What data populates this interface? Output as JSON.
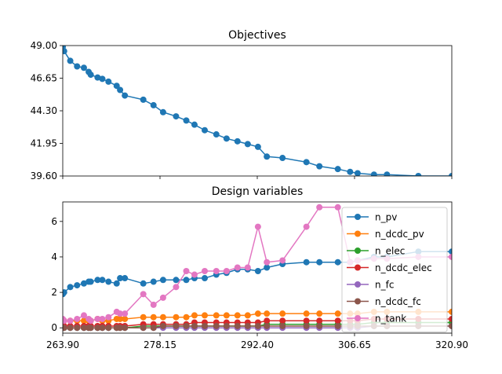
{
  "chart_data": [
    {
      "type": "line",
      "title": "Objectives",
      "xlim": [
        263.9,
        320.9
      ],
      "ylim": [
        39.6,
        49.0
      ],
      "xticks": [
        "263.90",
        "278.15",
        "292.40",
        "306.65",
        "320.90"
      ],
      "xtick_values": [
        263.9,
        278.15,
        292.4,
        306.65,
        320.9
      ],
      "x_tick_labels_shown": false,
      "yticks": [
        "39.60",
        "41.95",
        "44.30",
        "46.65",
        "49.00"
      ],
      "ytick_values": [
        39.6,
        41.95,
        44.3,
        46.65,
        49.0
      ],
      "grid": false,
      "legend": null,
      "series": [
        {
          "color": "#1f77b4",
          "marker": "circle",
          "x": [
            263.9,
            264.1,
            265.0,
            266.0,
            267.0,
            267.7,
            268.0,
            269.0,
            269.7,
            270.6,
            271.8,
            272.3,
            273.0,
            275.7,
            277.2,
            278.6,
            280.5,
            282.0,
            283.2,
            284.7,
            286.4,
            287.9,
            289.5,
            291.0,
            292.5,
            293.8,
            296.1,
            299.6,
            301.5,
            304.2,
            306.0,
            307.1,
            309.5,
            311.4,
            316.0,
            320.9
          ],
          "y": [
            48.9,
            48.6,
            47.9,
            47.5,
            47.4,
            47.1,
            46.9,
            46.7,
            46.6,
            46.4,
            46.1,
            45.8,
            45.4,
            45.1,
            44.7,
            44.2,
            43.9,
            43.6,
            43.3,
            42.9,
            42.6,
            42.3,
            42.1,
            41.9,
            41.7,
            41.0,
            40.9,
            40.6,
            40.3,
            40.1,
            39.9,
            39.8,
            39.7,
            39.7,
            39.6,
            39.6
          ]
        }
      ]
    },
    {
      "type": "line",
      "title": "Design variables",
      "xlim": [
        263.9,
        320.9
      ],
      "ylim": [
        -0.3,
        7.1
      ],
      "xticks": [
        "263.90",
        "278.15",
        "292.40",
        "306.65",
        "320.90"
      ],
      "xtick_values": [
        263.9,
        278.15,
        292.4,
        306.65,
        320.9
      ],
      "yticks": [
        "0",
        "2",
        "4",
        "6"
      ],
      "ytick_values": [
        0,
        2,
        4,
        6
      ],
      "grid": false,
      "legend": "right",
      "x": [
        263.9,
        264.1,
        265.0,
        266.0,
        267.0,
        267.7,
        268.0,
        269.0,
        269.7,
        270.6,
        271.8,
        272.3,
        273.0,
        275.7,
        277.2,
        278.6,
        280.5,
        282.0,
        283.2,
        284.7,
        286.4,
        287.9,
        289.5,
        291.0,
        292.5,
        293.8,
        296.1,
        299.6,
        301.5,
        304.2,
        306.0,
        307.1,
        309.5,
        311.4,
        316.0,
        320.9
      ],
      "series": [
        {
          "name": "n_pv",
          "color": "#1f77b4",
          "values": [
            1.9,
            2.0,
            2.3,
            2.4,
            2.5,
            2.6,
            2.6,
            2.7,
            2.7,
            2.6,
            2.5,
            2.8,
            2.8,
            2.5,
            2.6,
            2.7,
            2.7,
            2.7,
            2.8,
            2.8,
            3.0,
            3.1,
            3.3,
            3.3,
            3.2,
            3.4,
            3.6,
            3.7,
            3.7,
            3.7,
            3.7,
            3.8,
            4.0,
            4.0,
            4.3,
            4.3
          ]
        },
        {
          "name": "n_dcdc_pv",
          "color": "#ff7f0e",
          "values": [
            0.4,
            0.4,
            0.4,
            0.4,
            0.4,
            0.4,
            0.4,
            0.5,
            0.4,
            0.4,
            0.5,
            0.5,
            0.5,
            0.6,
            0.6,
            0.6,
            0.6,
            0.6,
            0.7,
            0.7,
            0.7,
            0.7,
            0.7,
            0.7,
            0.8,
            0.8,
            0.8,
            0.8,
            0.8,
            0.8,
            0.8,
            0.8,
            0.9,
            0.9,
            0.9,
            0.9
          ]
        },
        {
          "name": "n_elec",
          "color": "#2ca02c",
          "values": [
            0.0,
            0.0,
            0.0,
            0.0,
            0.0,
            0.0,
            0.0,
            0.0,
            0.0,
            0.0,
            0.0,
            0.0,
            0.0,
            0.1,
            0.1,
            0.1,
            0.1,
            0.1,
            0.1,
            0.1,
            0.1,
            0.1,
            0.1,
            0.1,
            0.1,
            0.2,
            0.2,
            0.2,
            0.2,
            0.2,
            0.2,
            0.2,
            0.3,
            0.3,
            0.3,
            0.3
          ]
        },
        {
          "name": "n_dcdc_elec",
          "color": "#d62728",
          "values": [
            0.1,
            0.1,
            0.1,
            0.1,
            0.1,
            0.1,
            0.1,
            0.1,
            0.1,
            0.1,
            0.1,
            0.1,
            0.1,
            0.2,
            0.2,
            0.2,
            0.2,
            0.2,
            0.3,
            0.3,
            0.3,
            0.3,
            0.3,
            0.3,
            0.3,
            0.4,
            0.4,
            0.4,
            0.4,
            0.4,
            0.4,
            0.4,
            0.5,
            0.5,
            0.5,
            0.5
          ]
        },
        {
          "name": "n_fc",
          "color": "#9467bd",
          "values": [
            0.0,
            0.0,
            0.0,
            0.0,
            0.0,
            0.0,
            0.0,
            0.0,
            0.0,
            0.0,
            0.0,
            0.0,
            0.0,
            0.0,
            0.0,
            0.0,
            0.0,
            0.0,
            0.0,
            0.0,
            0.0,
            0.0,
            0.0,
            0.0,
            0.0,
            0.0,
            0.0,
            0.0,
            0.0,
            0.0,
            0.0,
            0.0,
            0.1,
            0.1,
            0.1,
            0.1
          ]
        },
        {
          "name": "n_dcdc_fc",
          "color": "#8c564b",
          "values": [
            0.0,
            0.0,
            0.0,
            0.0,
            0.0,
            0.0,
            0.0,
            0.0,
            0.0,
            0.0,
            0.0,
            0.0,
            0.0,
            0.0,
            0.0,
            0.1,
            0.1,
            0.1,
            0.1,
            0.1,
            0.1,
            0.1,
            0.1,
            0.1,
            0.1,
            0.1,
            0.1,
            0.1,
            0.1,
            0.1,
            0.1,
            0.1,
            0.1,
            0.1,
            0.1,
            0.1
          ]
        },
        {
          "name": "n_tank",
          "color": "#e377c2",
          "values": [
            0.5,
            0.4,
            0.4,
            0.5,
            0.7,
            0.5,
            0.4,
            0.5,
            0.5,
            0.6,
            0.9,
            0.8,
            0.8,
            1.9,
            1.3,
            1.7,
            2.3,
            3.2,
            3.0,
            3.2,
            3.2,
            3.2,
            3.4,
            3.4,
            5.7,
            3.7,
            3.8,
            5.7,
            6.8,
            6.8,
            3.7,
            3.8,
            3.9,
            3.9,
            4.0,
            4.0
          ]
        }
      ]
    }
  ]
}
